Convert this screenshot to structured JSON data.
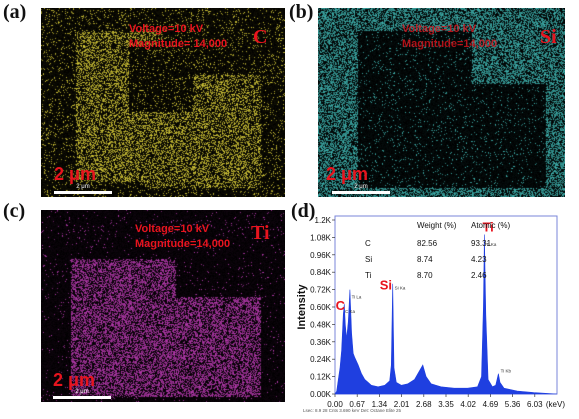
{
  "panels": {
    "a": {
      "label": "(a)",
      "voltage": "Voltage=10 kV",
      "magnitude": "Magnitude= 14,000",
      "element": "C",
      "scale_big": "2 μm",
      "scale_small": "2 μm",
      "dot_color": "#d8cc38"
    },
    "b": {
      "label": "(b)",
      "voltage": "Voltage=10 kV",
      "magnitude": "Magnitude=14,000",
      "element": "Si",
      "scale_big": "2 μm",
      "scale_small": "2 μm",
      "dot_color": "#3fb4b0"
    },
    "c": {
      "label": "(c)",
      "voltage": "Voltage=10 kV",
      "magnitude": "Magnitude=14,000",
      "element": "Ti",
      "scale_big": "2 μm",
      "scale_small": "2 μm",
      "dot_color": "#b83ab0"
    },
    "d": {
      "label": "(d)"
    }
  },
  "chart_data": {
    "type": "area",
    "ylabel": "Intensity",
    "xunit": "(keV)",
    "x_ticks": [
      "0.00",
      "0.67",
      "1.34",
      "2.01",
      "2.68",
      "3.35",
      "4.02",
      "4.69",
      "5.36",
      "6.03"
    ],
    "y_ticks": [
      "0.00K",
      "0.12K",
      "0.24K",
      "0.36K",
      "0.48K",
      "0.60K",
      "0.72K",
      "0.84K",
      "0.96K",
      "1.08K",
      "1.2K"
    ],
    "xlim": [
      0,
      6.7
    ],
    "ylim": [
      0,
      1.2
    ],
    "fill_color": "#1f3fe0",
    "table": {
      "headers": [
        "",
        "Weight (%)",
        "Atomic (%)"
      ],
      "rows": [
        [
          "C",
          "82.56",
          "93.31"
        ],
        [
          "Si",
          "8.74",
          "4.23"
        ],
        [
          "Ti",
          "8.70",
          "2.46"
        ]
      ]
    },
    "peaks": [
      {
        "element": "C",
        "x": 0.28,
        "y": 0.62
      },
      {
        "element": "Ti",
        "x": 0.45,
        "y": 0.72
      },
      {
        "element": "Si",
        "x": 1.74,
        "y": 0.76
      },
      {
        "element": "Ti",
        "x": 4.51,
        "y": 1.1
      }
    ],
    "peak_labels": [
      {
        "text": "C",
        "x": 0.05,
        "y": 0.58,
        "color": "#e8141e",
        "size": "big"
      },
      {
        "text": "Si",
        "x": 1.45,
        "y": 0.72,
        "color": "#e8141e",
        "size": "big"
      },
      {
        "text": "Ti",
        "x": 4.51,
        "y": 1.12,
        "color": "#e8141e",
        "size": "big"
      }
    ],
    "spectrum": [
      [
        0.0,
        0.0
      ],
      [
        0.05,
        0.02
      ],
      [
        0.1,
        0.1
      ],
      [
        0.15,
        0.18
      ],
      [
        0.2,
        0.3
      ],
      [
        0.25,
        0.55
      ],
      [
        0.28,
        0.62
      ],
      [
        0.31,
        0.48
      ],
      [
        0.35,
        0.38
      ],
      [
        0.4,
        0.5
      ],
      [
        0.45,
        0.72
      ],
      [
        0.5,
        0.42
      ],
      [
        0.55,
        0.28
      ],
      [
        0.6,
        0.25
      ],
      [
        0.7,
        0.2
      ],
      [
        0.8,
        0.14
      ],
      [
        0.9,
        0.1
      ],
      [
        1.0,
        0.08
      ],
      [
        1.1,
        0.06
      ],
      [
        1.3,
        0.05
      ],
      [
        1.5,
        0.06
      ],
      [
        1.65,
        0.09
      ],
      [
        1.7,
        0.2
      ],
      [
        1.74,
        0.76
      ],
      [
        1.78,
        0.18
      ],
      [
        1.85,
        0.08
      ],
      [
        2.0,
        0.06
      ],
      [
        2.2,
        0.07
      ],
      [
        2.4,
        0.1
      ],
      [
        2.55,
        0.16
      ],
      [
        2.65,
        0.2
      ],
      [
        2.75,
        0.12
      ],
      [
        2.9,
        0.07
      ],
      [
        3.2,
        0.05
      ],
      [
        3.6,
        0.04
      ],
      [
        4.0,
        0.04
      ],
      [
        4.3,
        0.05
      ],
      [
        4.42,
        0.12
      ],
      [
        4.48,
        0.6
      ],
      [
        4.51,
        1.1
      ],
      [
        4.55,
        0.55
      ],
      [
        4.62,
        0.1
      ],
      [
        4.75,
        0.05
      ],
      [
        4.85,
        0.06
      ],
      [
        4.93,
        0.14
      ],
      [
        4.98,
        0.08
      ],
      [
        5.1,
        0.04
      ],
      [
        5.5,
        0.02
      ],
      [
        6.0,
        0.01
      ],
      [
        6.7,
        0.0
      ]
    ],
    "small_peak_labels": [
      "C Ka",
      "Ti La",
      "Si Ka",
      "Ti Ka",
      "Ti Kb"
    ],
    "footer": "Lsec: 8.9     28 Cnts     3.690 keV     Det: Octane Elite 25"
  }
}
